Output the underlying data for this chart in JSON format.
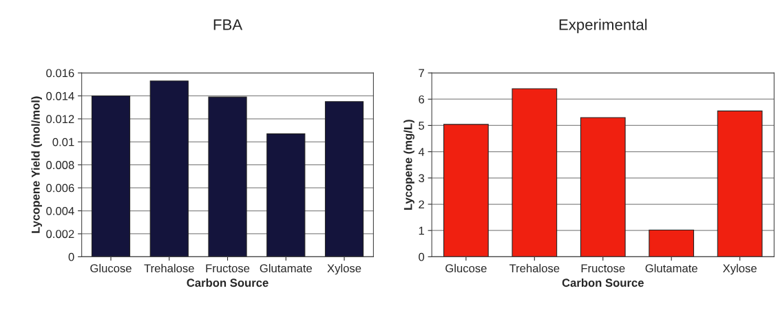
{
  "chart_data": [
    {
      "type": "bar",
      "title": "FBA",
      "xlabel": "Carbon Source",
      "ylabel": "Lycopene Yield (mol/mol)",
      "categories": [
        "Glucose",
        "Trehalose",
        "Fructose",
        "Glutamate",
        "Xylose"
      ],
      "values": [
        0.014,
        0.0153,
        0.0139,
        0.0107,
        0.0135
      ],
      "color": "#14143c",
      "ylim": [
        0,
        0.016
      ],
      "yticks": [
        0,
        0.002,
        0.004,
        0.006,
        0.008,
        0.01,
        0.012,
        0.014,
        0.016
      ],
      "grid": "y"
    },
    {
      "type": "bar",
      "title": "Experimental",
      "xlabel": "Carbon Source",
      "ylabel": "Lycopene (mg/L)",
      "categories": [
        "Glucose",
        "Trehalose",
        "Fructose",
        "Glutamate",
        "Xylose"
      ],
      "values": [
        5.04,
        6.4,
        5.3,
        1.02,
        5.55
      ],
      "color": "#f02010",
      "ylim": [
        0,
        7
      ],
      "yticks": [
        0,
        1,
        2,
        3,
        4,
        5,
        6,
        7
      ],
      "grid": "y"
    }
  ]
}
